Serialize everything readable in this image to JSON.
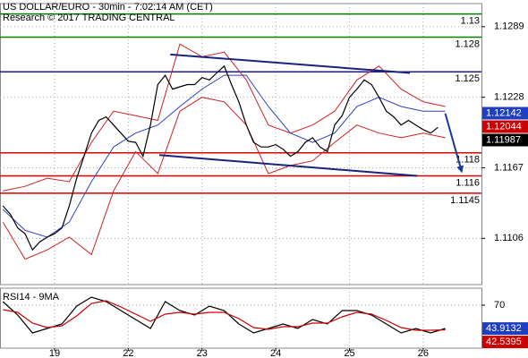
{
  "chart_data": [
    {
      "type": "line",
      "title": "US DOLLAR/EURO - 30min - 7:02:14 AM (CET)",
      "subtitle": "Research © 2017 TRADING CENTRAL",
      "x": [
        -0.7,
        -0.6,
        -0.5,
        -0.4,
        -0.3,
        -0.2,
        -0.1,
        0,
        0.1,
        0.2,
        0.3,
        0.4,
        0.5,
        0.6,
        0.7,
        0.8,
        0.9,
        1,
        1.1,
        1.2,
        1.3,
        1.4,
        1.5,
        1.6,
        1.7,
        1.8,
        1.9,
        2,
        2.1,
        2.2,
        2.3,
        2.4,
        2.5,
        2.6,
        2.7,
        2.8,
        2.9,
        3,
        3.1,
        3.2,
        3.3,
        3.4,
        3.5,
        3.6,
        3.7,
        3.8,
        3.9,
        4,
        4.1,
        4.2,
        4.3,
        4.4,
        4.5,
        4.6,
        4.7,
        4.8,
        4.9,
        5,
        5.1,
        5.2
      ],
      "xlim": [
        -0.74,
        5.79
      ],
      "xticks": [
        {
          "value": 0,
          "label": "19"
        },
        {
          "value": 1,
          "label": "22"
        },
        {
          "value": 2,
          "label": "23"
        },
        {
          "value": 3,
          "label": "24"
        },
        {
          "value": 4,
          "label": "25"
        },
        {
          "value": 5,
          "label": "26"
        }
      ],
      "ylim": [
        1.1066,
        1.1309
      ],
      "yticks": [
        1.1289,
        1.1228,
        1.1167,
        1.1106
      ],
      "grid": true,
      "series": [
        {
          "color": "#000000",
          "values": [
            1.1134,
            1.1127,
            1.1115,
            1.111,
            1.1096,
            1.1103,
            1.1107,
            1.111,
            1.1115,
            1.1134,
            1.1158,
            1.1177,
            1.1197,
            1.1208,
            1.1211,
            1.1204,
            1.1197,
            1.119,
            1.1189,
            1.1177,
            1.1204,
            1.1239,
            1.1247,
            1.1235,
            1.1237,
            1.1239,
            1.1239,
            1.1245,
            1.1243,
            1.1249,
            1.1255,
            1.1239,
            1.1224,
            1.1204,
            1.1189,
            1.1185,
            1.1185,
            1.1187,
            1.1183,
            1.1177,
            1.1181,
            1.1189,
            1.1193,
            1.1185,
            1.1181,
            1.1204,
            1.1212,
            1.1228,
            1.1235,
            1.1243,
            1.1239,
            1.1228,
            1.1216,
            1.1211,
            1.1204,
            1.1208,
            1.1204,
            1.12,
            1.1197,
            1.1202
          ]
        }
      ],
      "overlays": [
        {
          "color": "#cc2222",
          "x": [
            -0.7,
            -0.4,
            -0.1,
            0.2,
            0.5,
            0.8,
            1.1,
            1.4,
            1.7,
            2.0,
            2.3,
            2.6,
            2.9,
            3.2,
            3.5,
            3.8,
            4.1,
            4.4,
            4.7,
            5.0,
            5.3
          ],
          "values": [
            1.1147,
            1.1151,
            1.1158,
            1.1155,
            1.1189,
            1.1216,
            1.1212,
            1.1208,
            1.1274,
            1.1263,
            1.1267,
            1.1243,
            1.1204,
            1.1197,
            1.1204,
            1.1216,
            1.1243,
            1.1255,
            1.1235,
            1.1224,
            1.122
          ]
        },
        {
          "color": "#cc2222",
          "x": [
            -0.7,
            -0.4,
            -0.1,
            0.2,
            0.5,
            0.8,
            1.1,
            1.4,
            1.7,
            2.0,
            2.3,
            2.6,
            2.9,
            3.2,
            3.5,
            3.8,
            4.1,
            4.4,
            4.7,
            5.0,
            5.3
          ],
          "values": [
            1.112,
            1.1088,
            1.1096,
            1.1107,
            1.1092,
            1.1147,
            1.1181,
            1.1162,
            1.1216,
            1.1228,
            1.1224,
            1.1204,
            1.1162,
            1.1169,
            1.1173,
            1.1189,
            1.1204,
            1.1197,
            1.1193,
            1.1197,
            1.1193
          ]
        },
        {
          "color": "#3040c0",
          "x": [
            -0.7,
            -0.4,
            -0.1,
            0.2,
            0.5,
            0.8,
            1.1,
            1.4,
            1.7,
            2.0,
            2.3,
            2.6,
            2.9,
            3.2,
            3.5,
            3.8,
            4.1,
            4.4,
            4.7,
            5.0,
            5.3
          ],
          "values": [
            1.1131,
            1.1113,
            1.1107,
            1.112,
            1.1155,
            1.1185,
            1.1197,
            1.1204,
            1.122,
            1.1235,
            1.1247,
            1.1247,
            1.122,
            1.1197,
            1.1189,
            1.1197,
            1.122,
            1.1228,
            1.122,
            1.1216,
            1.1216
          ]
        }
      ],
      "levels": {
        "values": [
          1.13,
          1.128,
          1.125,
          1.118,
          1.116,
          1.1145
        ],
        "colors": [
          "#008000",
          "#008000",
          "#1a1aa6",
          "#dd0000",
          "#dd0000",
          "#dd0000"
        ]
      },
      "trendlines": {
        "color": "#1a237e",
        "lines": [
          {
            "x": [
              1.57,
              4.82
            ],
            "values": [
              1.1265,
              1.1249
            ]
          },
          {
            "x": [
              1.42,
              4.92
            ],
            "values": [
              1.1178,
              1.116
            ]
          }
        ]
      },
      "arrow": {
        "color": "#1a3a9a",
        "x": [
          5.3,
          5.52
        ],
        "values": [
          1.1214,
          1.1164
        ]
      },
      "price_labels": {
        "values": [
          1.12142,
          1.12044,
          1.11987
        ],
        "colors": [
          "#1f3fbf",
          "#cc0000",
          "#000000"
        ]
      }
    },
    {
      "type": "line",
      "title": "RSI14 - 9MA",
      "x": [
        -0.7,
        -0.5,
        -0.3,
        -0.1,
        0.1,
        0.3,
        0.5,
        0.7,
        0.9,
        1.1,
        1.3,
        1.5,
        1.7,
        1.9,
        2.1,
        2.3,
        2.5,
        2.7,
        2.9,
        3.1,
        3.3,
        3.5,
        3.7,
        3.9,
        4.1,
        4.3,
        4.5,
        4.7,
        4.9,
        5.1,
        5.3
      ],
      "xlim": [
        -0.74,
        5.79
      ],
      "ylim": [
        22,
        89
      ],
      "yticks": [
        70
      ],
      "series": [
        {
          "color": "#000000",
          "values": [
            74,
            59,
            39,
            44,
            49,
            69,
            79,
            74,
            64,
            54,
            44,
            74,
            64,
            59,
            69,
            64,
            49,
            39,
            44,
            49,
            44,
            54,
            49,
            64,
            64,
            59,
            49,
            39,
            44,
            39,
            44
          ]
        },
        {
          "color": "#cc0000",
          "values": [
            65,
            62,
            50,
            45,
            47,
            58,
            72,
            75,
            68,
            60,
            52,
            60,
            62,
            60,
            62,
            62,
            55,
            45,
            43,
            46,
            46,
            50,
            50,
            57,
            62,
            60,
            53,
            45,
            42,
            42,
            42.5
          ]
        }
      ],
      "price_labels": {
        "values": [
          43.9132,
          42.5395
        ],
        "colors": [
          "#1f3fbf",
          "#cc0000"
        ]
      }
    }
  ]
}
